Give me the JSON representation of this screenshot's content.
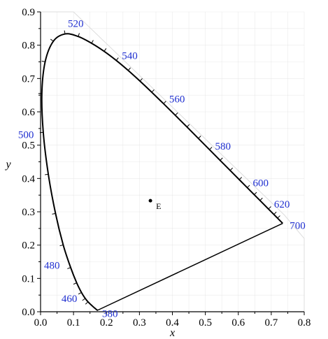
{
  "chart_data": {
    "type": "scatter",
    "title": "",
    "xlabel": "x",
    "ylabel": "y",
    "xlim": [
      0,
      0.8
    ],
    "ylim": [
      0,
      0.9
    ],
    "x_ticks": [
      "0.0",
      "0.1",
      "0.2",
      "0.3",
      "0.4",
      "0.5",
      "0.6",
      "0.7",
      "0.8"
    ],
    "y_ticks": [
      "0.0",
      "0.1",
      "0.2",
      "0.3",
      "0.4",
      "0.5",
      "0.6",
      "0.7",
      "0.8",
      "0.9"
    ],
    "grid": true,
    "colors": {
      "locus": "#000000",
      "wavelength_labels": "#1f2fd0",
      "grid": "#dddddd"
    },
    "spectral_locus": [
      {
        "nm": 380,
        "x": 0.1741,
        "y": 0.005
      },
      {
        "nm": 420,
        "x": 0.1714,
        "y": 0.0051
      },
      {
        "nm": 440,
        "x": 0.1644,
        "y": 0.0109
      },
      {
        "nm": 450,
        "x": 0.1566,
        "y": 0.0177
      },
      {
        "nm": 460,
        "x": 0.144,
        "y": 0.0297
      },
      {
        "nm": 465,
        "x": 0.1355,
        "y": 0.0399
      },
      {
        "nm": 470,
        "x": 0.1241,
        "y": 0.0578
      },
      {
        "nm": 475,
        "x": 0.1096,
        "y": 0.0868
      },
      {
        "nm": 480,
        "x": 0.0913,
        "y": 0.1327
      },
      {
        "nm": 485,
        "x": 0.0687,
        "y": 0.2007
      },
      {
        "nm": 490,
        "x": 0.0454,
        "y": 0.295
      },
      {
        "nm": 495,
        "x": 0.0235,
        "y": 0.4127
      },
      {
        "nm": 500,
        "x": 0.0082,
        "y": 0.5384
      },
      {
        "nm": 505,
        "x": 0.0039,
        "y": 0.6548
      },
      {
        "nm": 510,
        "x": 0.0139,
        "y": 0.7502
      },
      {
        "nm": 515,
        "x": 0.0389,
        "y": 0.812
      },
      {
        "nm": 520,
        "x": 0.0743,
        "y": 0.8338
      },
      {
        "nm": 525,
        "x": 0.1142,
        "y": 0.8262
      },
      {
        "nm": 530,
        "x": 0.1547,
        "y": 0.8059
      },
      {
        "nm": 535,
        "x": 0.1929,
        "y": 0.7816
      },
      {
        "nm": 540,
        "x": 0.2296,
        "y": 0.7543
      },
      {
        "nm": 545,
        "x": 0.2658,
        "y": 0.7243
      },
      {
        "nm": 550,
        "x": 0.3016,
        "y": 0.6923
      },
      {
        "nm": 555,
        "x": 0.3373,
        "y": 0.6589
      },
      {
        "nm": 560,
        "x": 0.3731,
        "y": 0.6245
      },
      {
        "nm": 565,
        "x": 0.4087,
        "y": 0.5896
      },
      {
        "nm": 570,
        "x": 0.4441,
        "y": 0.5547
      },
      {
        "nm": 575,
        "x": 0.4788,
        "y": 0.5202
      },
      {
        "nm": 580,
        "x": 0.5125,
        "y": 0.4866
      },
      {
        "nm": 585,
        "x": 0.5448,
        "y": 0.4544
      },
      {
        "nm": 590,
        "x": 0.5752,
        "y": 0.4242
      },
      {
        "nm": 595,
        "x": 0.6029,
        "y": 0.3965
      },
      {
        "nm": 600,
        "x": 0.627,
        "y": 0.3725
      },
      {
        "nm": 605,
        "x": 0.6482,
        "y": 0.3514
      },
      {
        "nm": 610,
        "x": 0.6658,
        "y": 0.334
      },
      {
        "nm": 620,
        "x": 0.6915,
        "y": 0.3083
      },
      {
        "nm": 630,
        "x": 0.7079,
        "y": 0.292
      },
      {
        "nm": 640,
        "x": 0.719,
        "y": 0.2809
      },
      {
        "nm": 660,
        "x": 0.73,
        "y": 0.27
      },
      {
        "nm": 700,
        "x": 0.7347,
        "y": 0.2653
      }
    ],
    "wavelength_labels": [
      {
        "text": "380",
        "nm": 380
      },
      {
        "text": "460",
        "nm": 460
      },
      {
        "text": "480",
        "nm": 480
      },
      {
        "text": "500",
        "nm": 500
      },
      {
        "text": "520",
        "nm": 520
      },
      {
        "text": "540",
        "nm": 540
      },
      {
        "text": "560",
        "nm": 560
      },
      {
        "text": "580",
        "nm": 580
      },
      {
        "text": "600",
        "nm": 600
      },
      {
        "text": "620",
        "nm": 620
      },
      {
        "text": "700",
        "nm": 700
      }
    ],
    "points": [
      {
        "label": "E",
        "x": 0.3333,
        "y": 0.3333
      }
    ]
  }
}
